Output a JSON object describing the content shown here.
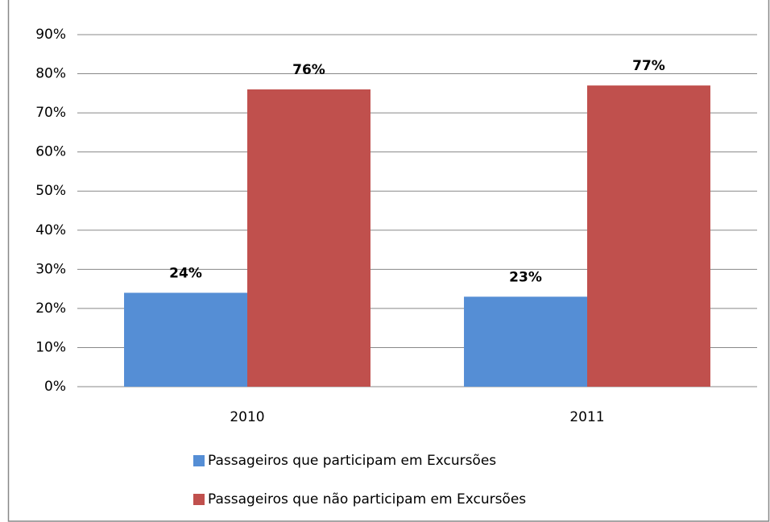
{
  "chart_data": {
    "type": "bar",
    "categories": [
      "2010",
      "2011"
    ],
    "series": [
      {
        "name": "Passageiros que participam em Excursões",
        "color": "#558ed5",
        "values": [
          24,
          23
        ],
        "value_labels": [
          "24%",
          "23%"
        ]
      },
      {
        "name": "Passageiros que não participam em Excursões",
        "color": "#c0504d",
        "values": [
          76,
          77
        ],
        "value_labels": [
          "76%",
          "77%"
        ]
      }
    ],
    "ylim": [
      0,
      90
    ],
    "yticks": [
      {
        "value": 0,
        "label": "0%"
      },
      {
        "value": 10,
        "label": "10%"
      },
      {
        "value": 20,
        "label": "20%"
      },
      {
        "value": 30,
        "label": "30%"
      },
      {
        "value": 40,
        "label": "40%"
      },
      {
        "value": 50,
        "label": "50%"
      },
      {
        "value": 60,
        "label": "60%"
      },
      {
        "value": 70,
        "label": "70%"
      },
      {
        "value": 80,
        "label": "80%"
      },
      {
        "value": 90,
        "label": "90%"
      }
    ],
    "grid": true,
    "legend": "bottom"
  }
}
